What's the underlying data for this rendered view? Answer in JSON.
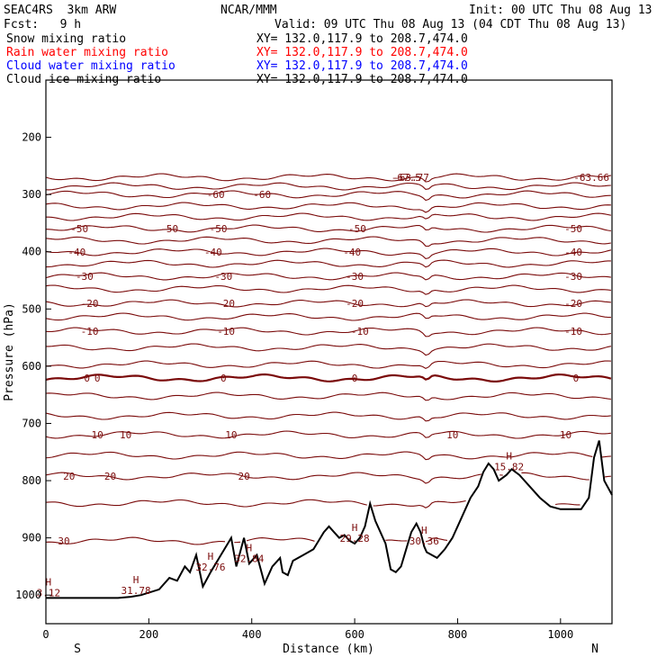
{
  "header": {
    "model": "SEAC4RS  3km ARW",
    "forecast": "Fcst:   9 h",
    "center": "NCAR/MMM",
    "init": "Init: 00 UTC Thu 08 Aug 13",
    "valid": "Valid: 09 UTC Thu 08 Aug 13 (04 CDT Thu 08 Aug 13)"
  },
  "fields": [
    {
      "label": "Snow mixing ratio",
      "xy": "XY= 132.0,117.9 to 208.7,474.0",
      "color": "#000000"
    },
    {
      "label": "Rain water mixing ratio",
      "xy": "XY= 132.0,117.9 to 208.7,474.0",
      "color": "#ff0000"
    },
    {
      "label": "Cloud water mixing ratio",
      "xy": "XY= 132.0,117.9 to 208.7,474.0",
      "color": "#0000ff"
    },
    {
      "label": "Cloud ice mixing ratio",
      "xy": "XY= 132.0,117.9 to 208.7,474.0",
      "color": "#000000"
    }
  ],
  "chart_data": {
    "type": "line",
    "xlabel": "Distance (km)",
    "ylabel": "Pressure (hPa)",
    "xlim": [
      0,
      1100
    ],
    "ylim": [
      1050,
      100
    ],
    "x_ticks": [
      0,
      200,
      400,
      600,
      800,
      1000
    ],
    "y_ticks": [
      200,
      300,
      400,
      500,
      600,
      700,
      800,
      900,
      1000
    ],
    "x_end_labels": {
      "left": "S",
      "right": "N"
    },
    "contour_color": "#7a0a0a",
    "terrain_color": "#000000",
    "temperature_contours": [
      {
        "base": 108,
        "labels": [
          {
            "x": 700,
            "text": "-67.5"
          },
          {
            "x": 1060,
            "text": "-63.66"
          },
          {
            "x": 710,
            "text": "-63.77"
          }
        ]
      },
      {
        "base": 118
      },
      {
        "base": 127,
        "labels": [
          {
            "x": 330,
            "text": "-60"
          },
          {
            "x": 420,
            "text": "-60"
          }
        ]
      },
      {
        "base": 140
      },
      {
        "base": 152
      },
      {
        "base": 165,
        "labels": [
          {
            "x": 65,
            "text": "-50"
          },
          {
            "x": 240,
            "text": "-50"
          },
          {
            "x": 335,
            "text": "-50"
          },
          {
            "x": 605,
            "text": "-50"
          },
          {
            "x": 1025,
            "text": "-50"
          }
        ]
      },
      {
        "base": 178
      },
      {
        "base": 191,
        "labels": [
          {
            "x": 60,
            "text": "-40"
          },
          {
            "x": 325,
            "text": "-40"
          },
          {
            "x": 595,
            "text": "-40"
          },
          {
            "x": 1025,
            "text": "-40"
          }
        ]
      },
      {
        "base": 204
      },
      {
        "base": 218,
        "labels": [
          {
            "x": 75,
            "text": "-30"
          },
          {
            "x": 345,
            "text": "-30"
          },
          {
            "x": 600,
            "text": "-30"
          },
          {
            "x": 1025,
            "text": "-30"
          }
        ]
      },
      {
        "base": 232
      },
      {
        "base": 248,
        "labels": [
          {
            "x": 85,
            "text": "-20"
          },
          {
            "x": 350,
            "text": "-20"
          },
          {
            "x": 600,
            "text": "-20"
          },
          {
            "x": 1025,
            "text": "-20"
          }
        ]
      },
      {
        "base": 263
      },
      {
        "base": 279,
        "labels": [
          {
            "x": 85,
            "text": "-10"
          },
          {
            "x": 350,
            "text": "-10"
          },
          {
            "x": 610,
            "text": "-10"
          },
          {
            "x": 1025,
            "text": "-10"
          }
        ]
      },
      {
        "base": 297
      },
      {
        "base": 316
      },
      {
        "base": 331,
        "thick": true,
        "labels": [
          {
            "x": 80,
            "text": "0"
          },
          {
            "x": 100,
            "text": "0"
          },
          {
            "x": 345,
            "text": "0"
          },
          {
            "x": 600,
            "text": "0"
          },
          {
            "x": 1030,
            "text": "0"
          }
        ]
      },
      {
        "base": 351
      },
      {
        "base": 373
      },
      {
        "base": 394,
        "labels": [
          {
            "x": 100,
            "text": "10"
          },
          {
            "x": 155,
            "text": "10"
          },
          {
            "x": 360,
            "text": "10"
          },
          {
            "x": 790,
            "text": "10"
          },
          {
            "x": 1010,
            "text": "10"
          }
        ]
      },
      {
        "base": 417
      },
      {
        "base": 440,
        "labels": [
          {
            "x": 45,
            "text": "20"
          },
          {
            "x": 125,
            "text": "20"
          },
          {
            "x": 385,
            "text": "20"
          }
        ]
      },
      {
        "base": 470
      },
      {
        "base": 512,
        "labels": [
          {
            "x": 35,
            "text": "30"
          }
        ]
      }
    ],
    "highs": [
      {
        "x": 5,
        "value": "3.12",
        "label": "H"
      },
      {
        "x": 175,
        "value": "31.78",
        "label": "H"
      },
      {
        "x": 320,
        "value": "32.76",
        "label": "H"
      },
      {
        "x": 395,
        "value": "32.84",
        "label": "H"
      },
      {
        "x": 600,
        "value": "29.28",
        "label": "H"
      },
      {
        "x": 735,
        "value": "30.36",
        "label": "H"
      },
      {
        "x": 900,
        "value": "15.82",
        "label": "H"
      }
    ],
    "terrain": [
      [
        0,
        1005
      ],
      [
        70,
        1005
      ],
      [
        140,
        1005
      ],
      [
        165,
        1003
      ],
      [
        185,
        1000
      ],
      [
        220,
        990
      ],
      [
        240,
        970
      ],
      [
        255,
        975
      ],
      [
        270,
        950
      ],
      [
        280,
        960
      ],
      [
        292,
        930
      ],
      [
        305,
        985
      ],
      [
        320,
        960
      ],
      [
        340,
        930
      ],
      [
        360,
        900
      ],
      [
        370,
        950
      ],
      [
        385,
        900
      ],
      [
        395,
        945
      ],
      [
        410,
        930
      ],
      [
        425,
        980
      ],
      [
        440,
        950
      ],
      [
        455,
        935
      ],
      [
        460,
        960
      ],
      [
        470,
        965
      ],
      [
        480,
        940
      ],
      [
        500,
        930
      ],
      [
        520,
        920
      ],
      [
        540,
        890
      ],
      [
        550,
        880
      ],
      [
        560,
        890
      ],
      [
        570,
        900
      ],
      [
        580,
        895
      ],
      [
        590,
        905
      ],
      [
        600,
        910
      ],
      [
        610,
        900
      ],
      [
        620,
        880
      ],
      [
        630,
        840
      ],
      [
        640,
        870
      ],
      [
        650,
        890
      ],
      [
        660,
        910
      ],
      [
        670,
        955
      ],
      [
        680,
        960
      ],
      [
        690,
        950
      ],
      [
        700,
        920
      ],
      [
        710,
        890
      ],
      [
        720,
        875
      ],
      [
        728,
        890
      ],
      [
        735,
        915
      ],
      [
        740,
        925
      ],
      [
        750,
        930
      ],
      [
        760,
        935
      ],
      [
        775,
        920
      ],
      [
        790,
        900
      ],
      [
        810,
        860
      ],
      [
        825,
        830
      ],
      [
        840,
        810
      ],
      [
        850,
        785
      ],
      [
        860,
        770
      ],
      [
        870,
        780
      ],
      [
        880,
        800
      ],
      [
        895,
        790
      ],
      [
        905,
        780
      ],
      [
        920,
        790
      ],
      [
        940,
        810
      ],
      [
        960,
        830
      ],
      [
        980,
        845
      ],
      [
        1000,
        850
      ],
      [
        1040,
        850
      ],
      [
        1055,
        830
      ],
      [
        1065,
        760
      ],
      [
        1075,
        730
      ],
      [
        1085,
        800
      ],
      [
        1100,
        825
      ]
    ]
  }
}
